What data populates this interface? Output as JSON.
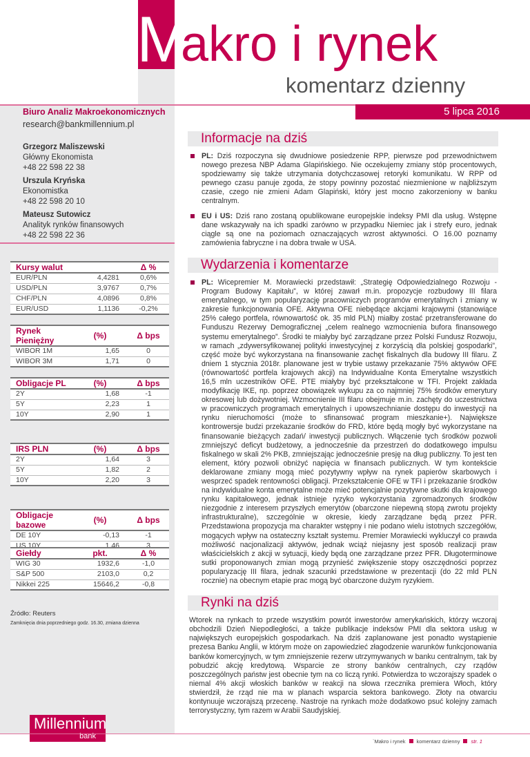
{
  "header": {
    "title_initial": "M",
    "title_rest": "akro i rynek",
    "subtitle": "komentarz dzienny",
    "date": "5 lipca 2016"
  },
  "contact": {
    "org": "Biuro Analiz Makroekonomicznych",
    "email": "research@bankmillennium.pl",
    "people": [
      {
        "name": "Grzegorz Maliszewski",
        "role": "Główny Ekonomista",
        "phone": "+48 22 598 22 38"
      },
      {
        "name": "Urszula Kryńska",
        "role": "Ekonomistka",
        "phone": "+48 22 598 20 10"
      },
      {
        "name": "Mateusz Sutowicz",
        "role": "Analityk rynków finansowych",
        "phone": "+48 22 598 22 36"
      }
    ]
  },
  "tables": [
    {
      "title": "Kursy walut",
      "col1": "",
      "col2": "Δ %",
      "rows": [
        [
          "EUR/PLN",
          "4,4281",
          "0,6%"
        ],
        [
          "USD/PLN",
          "3,9767",
          "0,7%"
        ],
        [
          "CHF/PLN",
          "4,0896",
          "0,8%"
        ],
        [
          "EUR/USD",
          "1,1136",
          "-0,2%"
        ]
      ]
    },
    {
      "title": "Rynek Pieniężny",
      "col1": "(%)",
      "col2": "Δ bps",
      "rows": [
        [
          "WIBOR 1M",
          "1,65",
          "0"
        ],
        [
          "WIBOR 3M",
          "1,71",
          "0"
        ]
      ]
    },
    {
      "title": "Obligacje PL",
      "col1": "(%)",
      "col2": "Δ bps",
      "rows": [
        [
          "2Y",
          "1,68",
          "-1"
        ],
        [
          "5Y",
          "2,23",
          "1"
        ],
        [
          "10Y",
          "2,90",
          "1"
        ]
      ]
    },
    {
      "title": "IRS PLN",
      "col1": "(%)",
      "col2": "Δ bps",
      "rows": [
        [
          "2Y",
          "1,64",
          "3"
        ],
        [
          "5Y",
          "1,82",
          "2"
        ],
        [
          "10Y",
          "2,20",
          "3"
        ]
      ]
    },
    {
      "title": "Obligacje bazowe",
      "col1": "(%)",
      "col2": "Δ bps",
      "rows": [
        [
          "DE 10Y",
          "-0,13",
          "-1"
        ],
        [
          "US 10Y",
          "1,46",
          "3"
        ]
      ]
    },
    {
      "title": "Giełdy",
      "col1": "pkt.",
      "col2": "Δ %",
      "rows": [
        [
          "WIG 30",
          "1932,6",
          "-1,0"
        ],
        [
          "S&P 500",
          "2103,0",
          "0,2"
        ],
        [
          "Nikkei 225",
          "15646,2",
          "-0,8"
        ]
      ]
    }
  ],
  "source": "Źródło: Reuters",
  "source_note": "Zamknięcia dnia poprzedniego godz. 16.30, zmiana dzienna",
  "logo": {
    "name": "Millennium",
    "sub": "bank"
  },
  "footer": {
    "a": "`Makro i rynek",
    "b": "komentarz dzienny",
    "c": "str. 1"
  },
  "colors": {
    "accent": "#c4004f",
    "panel": "#e9e9ea"
  },
  "sections": {
    "info_title": "Informacje na dziś",
    "info": [
      {
        "lead": "PL:",
        "text": " Dziś rozpoczyna się dwudniowe posiedzenie RPP, pierwsze pod przewodnictwem nowego prezesa NBP Adama Glapińskiego. Nie oczekujemy zmiany stóp procentowych, spodziewamy się także utrzymania dotychczasowej retoryki komunikatu. W RPP od pewnego czasu panuje zgoda, że stopy powinny pozostać niezmienione w najbliższym czasie, czego nie zmieni Adam Glapiński, który jest mocno zakorzeniony w banku centralnym."
      },
      {
        "lead": "EU i US:",
        "text": " Dziś rano zostaną opublikowane europejskie indeksy PMI dla usług. Wstępne dane wskazywały na ich spadki zarówno w przypadku Niemiec jak i strefy euro, jednak ciągle są one na poziomach oznaczających wzrost aktywności. O 16.00 poznamy zamówienia fabryczne i na dobra trwałe w USA."
      }
    ],
    "events_title": "Wydarzenia i komentarze",
    "events": [
      {
        "lead": "PL:",
        "text": " Wicepremier M. Morawiecki przedstawił: „Strategię Odpowiedzialnego Rozwoju - Program Budowy Kapitału”, w której zawarł m.in. propozycje rozbudowy III filara emerytalnego, w tym popularyzację pracowniczych programów emerytalnych i zmiany w zakresie funkcjonowania OFE. Aktywna OFE niebędące akcjami krajowymi (stanowiące 25% całego portfela, równowartość ok. 35 mld PLN) miałby zostać przetransferowane do Funduszu Rezerwy Demograficznej „celem realnego wzmocnienia bufora finansowego systemu emerytalnego”. Środki te miałyby być zarządzane przez Polski Fundusz Rozwoju, w ramach „zdywersyfikowanej polityki inwestycyjnej z korzyścią dla polskiej gospodarki”, część może być wykorzystana na finansowanie zachęt fiskalnych dla budowy III filaru. Z dniem 1 stycznia 2018r. planowane jest w trybie ustawy przekazanie 75% aktywów OFE (równowartość portfela krajowych akcji) na Indywidualne Konta Emerytalne wszystkich 16,5 mln uczestników OFE. PTE miałyby być przekształcone w TFI. Projekt zakłada modyfikację IKE, np. poprzez obowiązek wykupu za co najmniej 75% środków emerytury okresowej lub dożywotniej. Wzmocnienie III filaru obejmuje m.in. zachęty do uczestnictwa w pracowniczych programach emerytalnych i upowszechnianie dostępu do inwestycji na rynku nieruchomości (może to sfinansować program mieszkanie+). Największe kontrowersje budzi przekazanie środków do FRD, które będą mogły być wykorzystane na finansowanie bieżących zadań/ inwestycji publicznych. Włączenie tych środków pozwoli zmniejszyć deficyt budżetowy, a jednocześnie da przestrzeń do dodatkowego impulsu fiskalnego w skali 2% PKB, zmniejszając jednocześnie presję na dług publiczny. To jest ten element, który pozwoli obniżyć napięcia w finansach publicznych. W tym kontekście deklarowane zmiany mogą mieć pozytywny wpływ na rynek papierów skarbowych i wesprzeć spadek rentowności obligacji. Przekształcenie OFE w TFI i przekazanie środków na indywidualne konta emerytalne może mieć potencjalnie pozytywne skutki dla krajowego rynku kapitałowego, jednak istnieje ryzyko wykorzystania zgromadzonych środków niezgodnie z interesem przyszłych emerytów (obarczone niepewną stopą zwrotu projekty infrastrukturalne), szczególnie w okresie, kiedy zarządzane będą przez PFR. Przedstawiona propozycja ma charakter wstępny i nie podano wielu istotnych szczegółów, mogących wpływ na ostateczny kształt systemu. Premier Morawiecki wykluczył co prawda możliwość nacjonalizacji aktywów, jednak wciąż niejasny jest sposób realizacji praw właścicielskich z akcji w sytuacji, kiedy będą one zarządzane przez PFR. Długoterminowe sutki proponowanych zmian mogą przynieść zwiększenie stopy oszczędności poprzez popularyzację III filara, jednak szacunki przedstawione w prezentacji (do 22 mld PLN rocznie) na obecnym etapie prac mogą być obarczone dużym ryzykiem."
      }
    ],
    "markets_title": "Rynki na dziś",
    "markets": "Wtorek na rynkach to przede wszystkim powrót inwestorów amerykańskich, którzy wczoraj obchodzili Dzień Niepodległości, a także publikacje indeksów PMI dla sektora usług w największych europejskich gospodarkach. Na dziś zaplanowane jest ponadto wystąpienie prezesa Banku Anglii, w którym może on zapowiedzieć złagodzenie warunków funkcjonowania banków komercyjnych, w tym zmniejszenie rezerw utrzymywanych w banku centralnym, tak by pobudzić akcję kredytową. Wsparcie ze strony banków centralnych, czy rządów poszczególnych państw jest obecnie tym na co liczą rynki. Potwierdza to wczorajszy spadek o niemal 4% akcji włoskich banków w reakcji na słowa rzecznika premiera Włoch, który stwierdził, że rząd nie ma w planach wsparcia sektora bankowego. Złoty na otwarciu kontynuuje wczorajszą przecenę. Nastroje na rynkach może dodatkowo psuć kolejny zamach terrorystyczny, tym razem w Arabii Saudyjskiej."
  }
}
